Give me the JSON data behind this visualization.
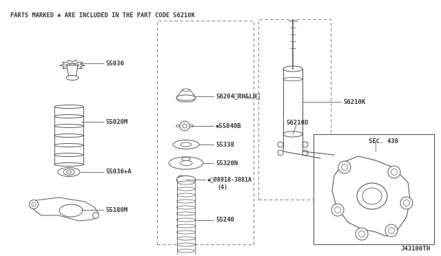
{
  "background_color": "#ffffff",
  "line_color": "#555555",
  "text_color": "#333333",
  "header_text": "PARTS MARKED ✱ ARE INCLUDED IN THE PART CODE 56210K",
  "footer_text": "J43100TH",
  "fig_w": 6.4,
  "fig_h": 3.72,
  "dpi": 100,
  "xlim": [
    0,
    640
  ],
  "ylim": [
    0,
    372
  ]
}
